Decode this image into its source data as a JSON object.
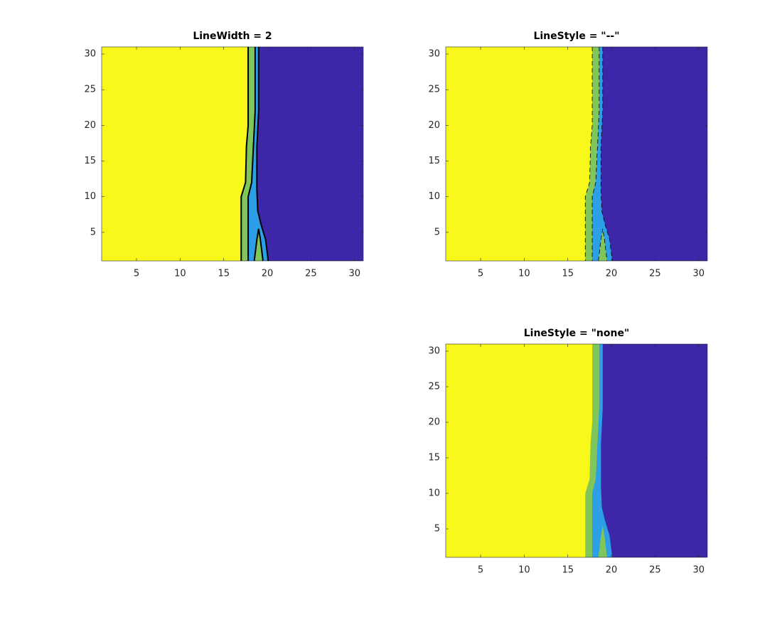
{
  "chart_data": [
    {
      "type": "contour",
      "title": "LineWidth = 2",
      "line_width": 2,
      "line_style": "-",
      "line_color": "#000000",
      "xlim": [
        1,
        31
      ],
      "ylim": [
        1,
        31
      ],
      "xticks": [
        5,
        10,
        15,
        20,
        25,
        30
      ],
      "yticks": [
        5,
        10,
        15,
        20,
        25,
        30
      ],
      "background": "#3e26a8",
      "boundaries": [
        {
          "color": "#2c9fe6",
          "x": [
            19.0,
            19.0,
            18.8,
            18.8,
            18.9,
            19.3,
            19.8,
            20.1
          ],
          "y": [
            31,
            22,
            17,
            11,
            8,
            6,
            4,
            1
          ]
        },
        {
          "color": "#80c65a",
          "x": [
            18.6,
            18.6,
            18.4,
            18.2,
            17.8,
            17.8
          ],
          "y": [
            31,
            22,
            17,
            12,
            10,
            1
          ]
        },
        {
          "color": "#f8f81a",
          "x": [
            17.8,
            17.8,
            17.6,
            17.5,
            17.0,
            17.0
          ],
          "y": [
            31,
            20,
            17,
            12,
            10,
            1
          ]
        }
      ],
      "lens": {
        "color": "#80c65a",
        "x": [
          18.5,
          18.8,
          19.0,
          19.2,
          19.5
        ],
        "y": [
          1,
          4,
          5.5,
          4,
          1
        ]
      }
    },
    {
      "type": "contour",
      "title": "LineStyle = \"--\"",
      "line_width": 0.8,
      "line_style": "--",
      "line_color": "#000000",
      "xlim": [
        1,
        31
      ],
      "ylim": [
        1,
        31
      ],
      "xticks": [
        5,
        10,
        15,
        20,
        25,
        30
      ],
      "yticks": [
        5,
        10,
        15,
        20,
        25,
        30
      ],
      "background": "#3e26a8",
      "boundaries": [
        {
          "color": "#2c9fe6",
          "x": [
            19.0,
            19.0,
            18.8,
            18.8,
            18.9,
            19.3,
            19.8,
            20.1
          ],
          "y": [
            31,
            22,
            17,
            11,
            8,
            6,
            4,
            1
          ]
        },
        {
          "color": "#80c65a",
          "x": [
            18.6,
            18.6,
            18.4,
            18.2,
            17.8,
            17.8
          ],
          "y": [
            31,
            22,
            17,
            12,
            10,
            1
          ]
        },
        {
          "color": "#f8f81a",
          "x": [
            17.8,
            17.8,
            17.6,
            17.5,
            17.0,
            17.0
          ],
          "y": [
            31,
            20,
            17,
            12,
            10,
            1
          ]
        }
      ],
      "lens": {
        "color": "#80c65a",
        "x": [
          18.5,
          18.8,
          19.0,
          19.2,
          19.5
        ],
        "y": [
          1,
          4,
          5.5,
          4,
          1
        ]
      }
    },
    {
      "type": "contour",
      "title": "LineStyle = \"none\"",
      "line_width": 0.8,
      "line_style": "none",
      "line_color": "#000000",
      "xlim": [
        1,
        31
      ],
      "ylim": [
        1,
        31
      ],
      "xticks": [
        5,
        10,
        15,
        20,
        25,
        30
      ],
      "yticks": [
        5,
        10,
        15,
        20,
        25,
        30
      ],
      "background": "#3e26a8",
      "boundaries": [
        {
          "color": "#2c9fe6",
          "x": [
            19.0,
            19.0,
            18.8,
            18.8,
            18.9,
            19.3,
            19.8,
            20.1
          ],
          "y": [
            31,
            22,
            17,
            11,
            8,
            6,
            4,
            1
          ]
        },
        {
          "color": "#80c65a",
          "x": [
            18.6,
            18.6,
            18.4,
            18.2,
            17.8,
            17.8
          ],
          "y": [
            31,
            22,
            17,
            12,
            10,
            1
          ]
        },
        {
          "color": "#f8f81a",
          "x": [
            17.8,
            17.8,
            17.6,
            17.5,
            17.0,
            17.0
          ],
          "y": [
            31,
            20,
            17,
            12,
            10,
            1
          ]
        }
      ],
      "lens": {
        "color": "#80c65a",
        "x": [
          18.5,
          18.8,
          19.0,
          19.2,
          19.5
        ],
        "y": [
          1,
          4,
          5.5,
          4,
          1
        ]
      }
    }
  ]
}
